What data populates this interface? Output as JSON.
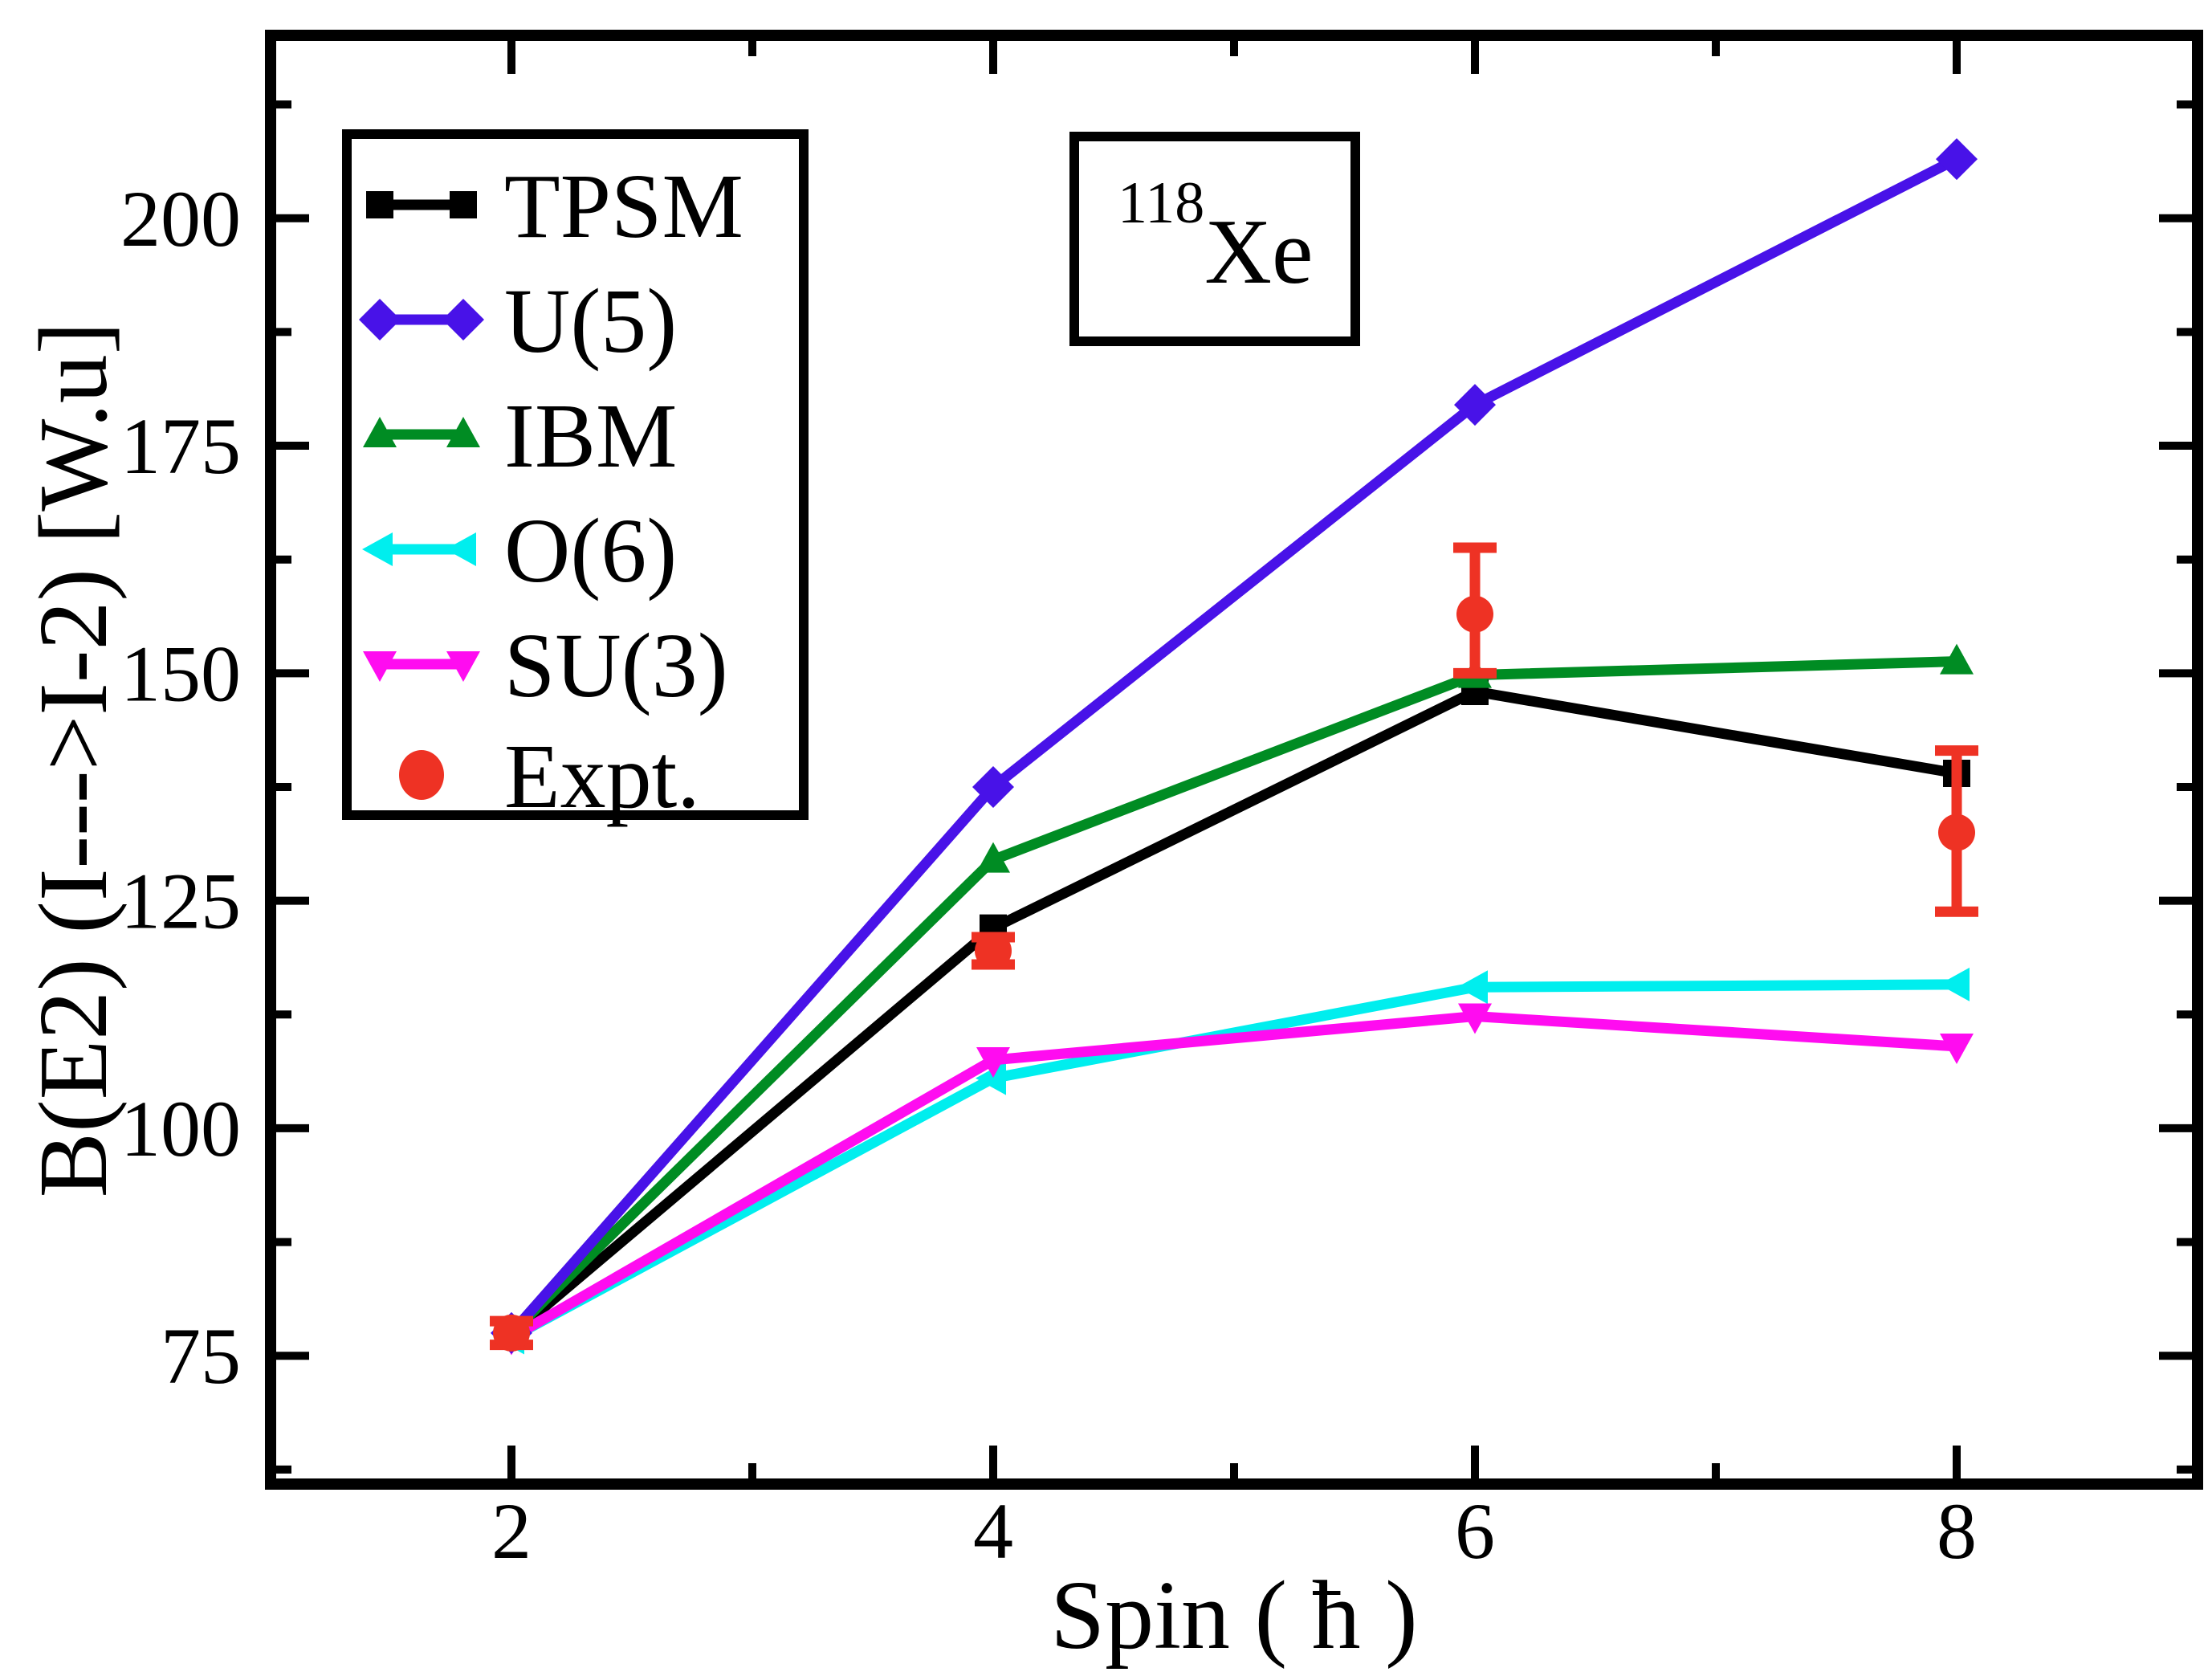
{
  "chart_data": {
    "type": "line",
    "title": {
      "mass": "118",
      "element": "Xe"
    },
    "xlabel": "Spin ( ħ )",
    "ylabel": "B(E2) (I--->I-2) [W.u]",
    "xlim": [
      1,
      9
    ],
    "ylim": [
      60.9,
      220.1
    ],
    "x_major_ticks": [
      2,
      4,
      6,
      8
    ],
    "x_minor_ticks": [
      3,
      5,
      7
    ],
    "y_major_ticks": [
      75,
      100,
      125,
      150,
      175,
      200
    ],
    "y_minor_ticks": [
      62.5,
      87.5,
      112.5,
      137.5,
      162.5,
      187.5,
      212.5
    ],
    "x": [
      2,
      4,
      6,
      8
    ],
    "series": [
      {
        "name": "TPSM",
        "color": "#000000",
        "marker": "square",
        "has_line": true,
        "values": [
          77.3,
          122.0,
          148.0,
          139.0
        ]
      },
      {
        "name": "O(6)",
        "color": "#00eeee",
        "marker": "triangle-left",
        "has_line": true,
        "values": [
          77.0,
          105.5,
          115.5,
          115.8
        ]
      },
      {
        "name": "SU(3)",
        "color": "#ff0cf0",
        "marker": "triangle-down",
        "has_line": true,
        "values": [
          77.0,
          107.5,
          112.3,
          109.0
        ]
      },
      {
        "name": "IBM",
        "color": "#008c23",
        "marker": "triangle-up",
        "has_line": true,
        "values": [
          77.5,
          129.5,
          149.8,
          151.3
        ]
      },
      {
        "name": "U(5)",
        "color": "#4812e8",
        "marker": "diamond",
        "has_line": true,
        "values": [
          77.5,
          137.5,
          179.5,
          206.5
        ]
      },
      {
        "name": "Expt.",
        "color": "#ee3224",
        "marker": "circle",
        "has_line": false,
        "values": [
          77.5,
          119.5,
          156.5,
          132.5
        ],
        "error_plus": [
          1.3,
          1.5,
          7.3,
          9.0
        ],
        "error_minus": [
          1.3,
          1.5,
          6.5,
          8.7
        ]
      }
    ],
    "legend_order": [
      "TPSM",
      "U(5)",
      "IBM",
      "O(6)",
      "SU(3)",
      "Expt."
    ],
    "legend_position": "top-left",
    "grid": false
  }
}
